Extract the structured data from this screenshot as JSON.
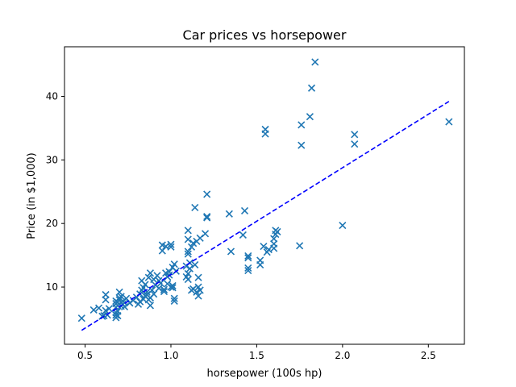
{
  "chart_data": {
    "type": "scatter",
    "title": "Car prices vs horsepower",
    "xlabel": "horsepower (100s hp)",
    "ylabel": "Price (in $1,000)",
    "xlim": [
      0.38,
      2.71
    ],
    "ylim": [
      1.0,
      47.8
    ],
    "xticks": [
      0.5,
      1.0,
      1.5,
      2.0,
      2.5
    ],
    "xtick_labels": [
      "0.5",
      "1.0",
      "1.5",
      "2.0",
      "2.5"
    ],
    "yticks": [
      10,
      20,
      30,
      40
    ],
    "ytick_labels": [
      "10",
      "20",
      "30",
      "40"
    ],
    "grid": false,
    "marker": "x",
    "series": [
      {
        "marker_color": "#1f77b4",
        "points": [
          [
            0.48,
            5.1
          ],
          [
            0.55,
            6.4
          ],
          [
            0.58,
            6.7
          ],
          [
            0.6,
            5.4
          ],
          [
            0.61,
            5.5
          ],
          [
            0.62,
            6.3
          ],
          [
            0.62,
            8.0
          ],
          [
            0.62,
            8.8
          ],
          [
            0.63,
            5.6
          ],
          [
            0.64,
            6.6
          ],
          [
            0.68,
            5.2
          ],
          [
            0.68,
            5.6
          ],
          [
            0.68,
            6.0
          ],
          [
            0.68,
            6.8
          ],
          [
            0.68,
            7.4
          ],
          [
            0.68,
            7.8
          ],
          [
            0.69,
            5.5
          ],
          [
            0.69,
            6.2
          ],
          [
            0.69,
            7.1
          ],
          [
            0.69,
            7.6
          ],
          [
            0.7,
            8.0
          ],
          [
            0.7,
            8.3
          ],
          [
            0.7,
            9.2
          ],
          [
            0.71,
            7.0
          ],
          [
            0.71,
            8.5
          ],
          [
            0.72,
            7.3
          ],
          [
            0.72,
            7.8
          ],
          [
            0.73,
            6.9
          ],
          [
            0.74,
            8.2
          ],
          [
            0.76,
            7.5
          ],
          [
            0.78,
            7.9
          ],
          [
            0.8,
            8.4
          ],
          [
            0.81,
            7.3
          ],
          [
            0.82,
            7.7
          ],
          [
            0.82,
            8.9
          ],
          [
            0.83,
            9.5
          ],
          [
            0.83,
            11.0
          ],
          [
            0.84,
            8.1
          ],
          [
            0.84,
            9.9
          ],
          [
            0.85,
            8.6
          ],
          [
            0.85,
            10.4
          ],
          [
            0.86,
            8.8
          ],
          [
            0.86,
            9.2
          ],
          [
            0.87,
            8.0
          ],
          [
            0.87,
            11.5
          ],
          [
            0.88,
            7.1
          ],
          [
            0.88,
            8.3
          ],
          [
            0.88,
            12.2
          ],
          [
            0.89,
            9.5
          ],
          [
            0.9,
            8.9
          ],
          [
            0.9,
            11.2
          ],
          [
            0.91,
            10.3
          ],
          [
            0.92,
            11.8
          ],
          [
            0.93,
            9.8
          ],
          [
            0.93,
            11.0
          ],
          [
            0.94,
            10.6
          ],
          [
            0.95,
            16.6
          ],
          [
            0.95,
            15.7
          ],
          [
            0.96,
            9.3
          ],
          [
            0.96,
            9.6
          ],
          [
            0.97,
            12.2
          ],
          [
            0.97,
            16.4
          ],
          [
            0.98,
            10.5
          ],
          [
            0.98,
            11.6
          ],
          [
            0.99,
            11.9
          ],
          [
            0.99,
            12.4
          ],
          [
            1.0,
            10.0
          ],
          [
            1.0,
            16.7
          ],
          [
            1.0,
            16.3
          ],
          [
            1.01,
            9.9
          ],
          [
            1.01,
            10.2
          ],
          [
            1.01,
            13.1
          ],
          [
            1.02,
            7.8
          ],
          [
            1.02,
            8.2
          ],
          [
            1.02,
            13.6
          ],
          [
            1.03,
            12.5
          ],
          [
            1.09,
            11.6
          ],
          [
            1.09,
            13.3
          ],
          [
            1.1,
            11.2
          ],
          [
            1.1,
            12.1
          ],
          [
            1.1,
            15.2
          ],
          [
            1.1,
            15.6
          ],
          [
            1.1,
            17.5
          ],
          [
            1.1,
            18.9
          ],
          [
            1.11,
            12.9
          ],
          [
            1.11,
            13.8
          ],
          [
            1.12,
            9.5
          ],
          [
            1.12,
            16.3
          ],
          [
            1.13,
            9.7
          ],
          [
            1.13,
            16.9
          ],
          [
            1.14,
            13.5
          ],
          [
            1.14,
            22.5
          ],
          [
            1.15,
            9.2
          ],
          [
            1.15,
            17.2
          ],
          [
            1.16,
            8.6
          ],
          [
            1.16,
            10.0
          ],
          [
            1.16,
            11.5
          ],
          [
            1.17,
            9.5
          ],
          [
            1.17,
            17.7
          ],
          [
            1.2,
            18.4
          ],
          [
            1.21,
            24.6
          ],
          [
            1.21,
            21.1
          ],
          [
            1.21,
            20.9
          ],
          [
            1.34,
            21.5
          ],
          [
            1.35,
            15.6
          ],
          [
            1.42,
            18.2
          ],
          [
            1.43,
            22.0
          ],
          [
            1.45,
            12.6
          ],
          [
            1.45,
            13.0
          ],
          [
            1.45,
            14.6
          ],
          [
            1.45,
            14.9
          ],
          [
            1.52,
            13.5
          ],
          [
            1.52,
            14.2
          ],
          [
            1.54,
            16.4
          ],
          [
            1.55,
            34.8
          ],
          [
            1.55,
            34.1
          ],
          [
            1.56,
            15.5
          ],
          [
            1.57,
            15.9
          ],
          [
            1.6,
            16.1
          ],
          [
            1.6,
            16.8
          ],
          [
            1.6,
            17.6
          ],
          [
            1.61,
            18.9
          ],
          [
            1.61,
            18.3
          ],
          [
            1.62,
            18.7
          ],
          [
            1.75,
            16.5
          ],
          [
            1.76,
            35.5
          ],
          [
            1.76,
            32.3
          ],
          [
            1.81,
            36.8
          ],
          [
            1.82,
            41.3
          ],
          [
            1.84,
            45.4
          ],
          [
            2.0,
            19.7
          ],
          [
            2.07,
            34.0
          ],
          [
            2.07,
            32.5
          ],
          [
            2.62,
            36.0
          ]
        ]
      }
    ],
    "fit_line": {
      "x": [
        0.48,
        2.62
      ],
      "y": [
        3.2,
        39.2
      ],
      "color": "#0000ff",
      "style": "dashed"
    }
  }
}
